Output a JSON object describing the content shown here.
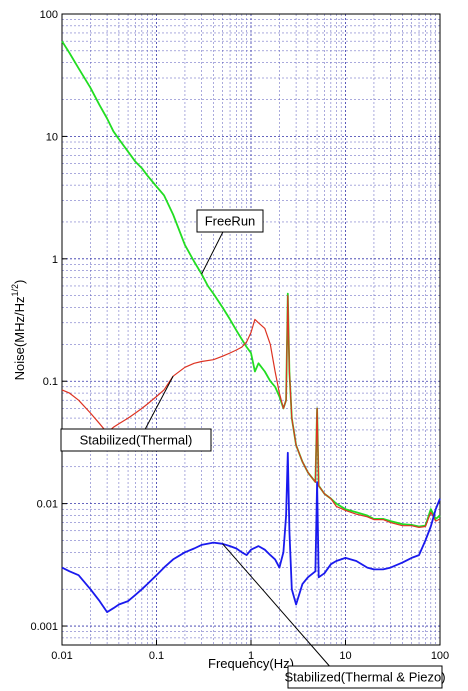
{
  "chart_data": {
    "type": "line",
    "xlabel": "Frequency(Hz)",
    "ylabel": "Noise(MHz/Hz",
    "ylabel_superscript": "1/2",
    "ylabel_close": ")",
    "x_scale": "log",
    "y_scale": "log",
    "xlim": [
      0.01,
      100
    ],
    "ylim": [
      0.0007,
      100
    ],
    "grid": true,
    "x_ticks": [
      {
        "value": 0.01,
        "label": "0.01"
      },
      {
        "value": 0.1,
        "label": "0.1"
      },
      {
        "value": 1,
        "label": "1"
      },
      {
        "value": 10,
        "label": "10"
      },
      {
        "value": 100,
        "label": "100"
      }
    ],
    "y_ticks": [
      {
        "value": 0.001,
        "label": "0.001"
      },
      {
        "value": 0.01,
        "label": "0.01"
      },
      {
        "value": 0.1,
        "label": "0.1"
      },
      {
        "value": 1,
        "label": "1"
      },
      {
        "value": 10,
        "label": "10"
      },
      {
        "value": 100,
        "label": "100"
      }
    ],
    "series": [
      {
        "name": "FreeRun",
        "color": "#22dd22",
        "points": [
          [
            0.01,
            60
          ],
          [
            0.012,
            48
          ],
          [
            0.015,
            36
          ],
          [
            0.02,
            25
          ],
          [
            0.025,
            18
          ],
          [
            0.03,
            14
          ],
          [
            0.035,
            11
          ],
          [
            0.04,
            9.5
          ],
          [
            0.05,
            7.5
          ],
          [
            0.06,
            6.2
          ],
          [
            0.07,
            5.5
          ],
          [
            0.08,
            4.8
          ],
          [
            0.1,
            3.9
          ],
          [
            0.12,
            3.3
          ],
          [
            0.15,
            2.3
          ],
          [
            0.2,
            1.3
          ],
          [
            0.25,
            0.95
          ],
          [
            0.3,
            0.75
          ],
          [
            0.35,
            0.6
          ],
          [
            0.4,
            0.52
          ],
          [
            0.5,
            0.4
          ],
          [
            0.6,
            0.32
          ],
          [
            0.7,
            0.26
          ],
          [
            0.8,
            0.22
          ],
          [
            0.9,
            0.19
          ],
          [
            1.0,
            0.17
          ],
          [
            1.1,
            0.12
          ],
          [
            1.2,
            0.14
          ],
          [
            1.4,
            0.12
          ],
          [
            1.6,
            0.1
          ],
          [
            1.8,
            0.09
          ],
          [
            2.0,
            0.075
          ],
          [
            2.2,
            0.06
          ],
          [
            2.35,
            0.07
          ],
          [
            2.45,
            0.52
          ],
          [
            2.55,
            0.12
          ],
          [
            2.7,
            0.05
          ],
          [
            3.0,
            0.03
          ],
          [
            3.5,
            0.022
          ],
          [
            4.0,
            0.018
          ],
          [
            4.8,
            0.015
          ],
          [
            5.0,
            0.06
          ],
          [
            5.2,
            0.014
          ],
          [
            6.0,
            0.012
          ],
          [
            7.0,
            0.011
          ],
          [
            8.0,
            0.01
          ],
          [
            10,
            0.009
          ],
          [
            13,
            0.0085
          ],
          [
            17,
            0.008
          ],
          [
            20,
            0.0075
          ],
          [
            25,
            0.0075
          ],
          [
            30,
            0.0072
          ],
          [
            40,
            0.0068
          ],
          [
            50,
            0.0067
          ],
          [
            60,
            0.0065
          ],
          [
            70,
            0.0066
          ],
          [
            80,
            0.009
          ],
          [
            90,
            0.0075
          ],
          [
            100,
            0.008
          ]
        ]
      },
      {
        "name": "Stabilized(Thermal)",
        "color": "#dd3322",
        "points": [
          [
            0.01,
            0.085
          ],
          [
            0.012,
            0.08
          ],
          [
            0.015,
            0.07
          ],
          [
            0.02,
            0.055
          ],
          [
            0.025,
            0.045
          ],
          [
            0.03,
            0.038
          ],
          [
            0.035,
            0.042
          ],
          [
            0.04,
            0.045
          ],
          [
            0.05,
            0.05
          ],
          [
            0.06,
            0.055
          ],
          [
            0.07,
            0.06
          ],
          [
            0.08,
            0.065
          ],
          [
            0.1,
            0.075
          ],
          [
            0.12,
            0.085
          ],
          [
            0.15,
            0.11
          ],
          [
            0.2,
            0.13
          ],
          [
            0.25,
            0.14
          ],
          [
            0.3,
            0.145
          ],
          [
            0.4,
            0.15
          ],
          [
            0.5,
            0.16
          ],
          [
            0.6,
            0.17
          ],
          [
            0.7,
            0.18
          ],
          [
            0.8,
            0.19
          ],
          [
            0.9,
            0.21
          ],
          [
            1.0,
            0.25
          ],
          [
            1.1,
            0.32
          ],
          [
            1.2,
            0.3
          ],
          [
            1.4,
            0.27
          ],
          [
            1.6,
            0.2
          ],
          [
            1.8,
            0.12
          ],
          [
            2.0,
            0.08
          ],
          [
            2.2,
            0.06
          ],
          [
            2.35,
            0.07
          ],
          [
            2.45,
            0.5
          ],
          [
            2.55,
            0.12
          ],
          [
            2.7,
            0.05
          ],
          [
            3.0,
            0.03
          ],
          [
            3.5,
            0.022
          ],
          [
            4.0,
            0.018
          ],
          [
            4.8,
            0.015
          ],
          [
            5.0,
            0.06
          ],
          [
            5.2,
            0.014
          ],
          [
            6.0,
            0.012
          ],
          [
            7.0,
            0.011
          ],
          [
            8.0,
            0.0095
          ],
          [
            10,
            0.0088
          ],
          [
            13,
            0.0082
          ],
          [
            17,
            0.0078
          ],
          [
            20,
            0.0074
          ],
          [
            25,
            0.0074
          ],
          [
            30,
            0.007
          ],
          [
            40,
            0.0066
          ],
          [
            50,
            0.0066
          ],
          [
            60,
            0.0064
          ],
          [
            70,
            0.0065
          ],
          [
            80,
            0.0085
          ],
          [
            90,
            0.0072
          ],
          [
            100,
            0.0075
          ]
        ]
      },
      {
        "name": "Stabilized(Thermal & Piezo)",
        "color": "#1a1aee",
        "points": [
          [
            0.01,
            0.003
          ],
          [
            0.012,
            0.0028
          ],
          [
            0.015,
            0.0026
          ],
          [
            0.02,
            0.002
          ],
          [
            0.025,
            0.0016
          ],
          [
            0.03,
            0.0013
          ],
          [
            0.035,
            0.0014
          ],
          [
            0.04,
            0.0015
          ],
          [
            0.05,
            0.0016
          ],
          [
            0.06,
            0.0018
          ],
          [
            0.07,
            0.002
          ],
          [
            0.08,
            0.0022
          ],
          [
            0.1,
            0.0026
          ],
          [
            0.12,
            0.003
          ],
          [
            0.15,
            0.0035
          ],
          [
            0.2,
            0.004
          ],
          [
            0.25,
            0.0043
          ],
          [
            0.3,
            0.0046
          ],
          [
            0.4,
            0.0048
          ],
          [
            0.5,
            0.0047
          ],
          [
            0.6,
            0.0045
          ],
          [
            0.7,
            0.0043
          ],
          [
            0.8,
            0.004
          ],
          [
            0.9,
            0.0038
          ],
          [
            1.0,
            0.0042
          ],
          [
            1.2,
            0.0045
          ],
          [
            1.4,
            0.0042
          ],
          [
            1.6,
            0.0038
          ],
          [
            1.8,
            0.0035
          ],
          [
            2.0,
            0.003
          ],
          [
            2.2,
            0.004
          ],
          [
            2.35,
            0.008
          ],
          [
            2.45,
            0.026
          ],
          [
            2.55,
            0.006
          ],
          [
            2.7,
            0.002
          ],
          [
            3.0,
            0.0015
          ],
          [
            3.5,
            0.0022
          ],
          [
            4.0,
            0.0025
          ],
          [
            4.8,
            0.0028
          ],
          [
            5.0,
            0.015
          ],
          [
            5.2,
            0.0025
          ],
          [
            6.0,
            0.0027
          ],
          [
            7.0,
            0.0032
          ],
          [
            8.0,
            0.0034
          ],
          [
            10,
            0.0036
          ],
          [
            13,
            0.0034
          ],
          [
            17,
            0.003
          ],
          [
            20,
            0.0029
          ],
          [
            25,
            0.0029
          ],
          [
            30,
            0.003
          ],
          [
            40,
            0.0033
          ],
          [
            50,
            0.0036
          ],
          [
            60,
            0.0038
          ],
          [
            70,
            0.005
          ],
          [
            80,
            0.0065
          ],
          [
            90,
            0.009
          ],
          [
            100,
            0.011
          ]
        ]
      }
    ],
    "annotations": [
      {
        "text": "FreeRun",
        "target": [
          0.3,
          0.75
        ]
      },
      {
        "text": "Stabilized(Thermal)",
        "target": [
          0.15,
          0.11
        ]
      },
      {
        "text": "Stabilized(Thermal & Piezo)",
        "target": [
          0.5,
          0.0047
        ]
      }
    ]
  }
}
